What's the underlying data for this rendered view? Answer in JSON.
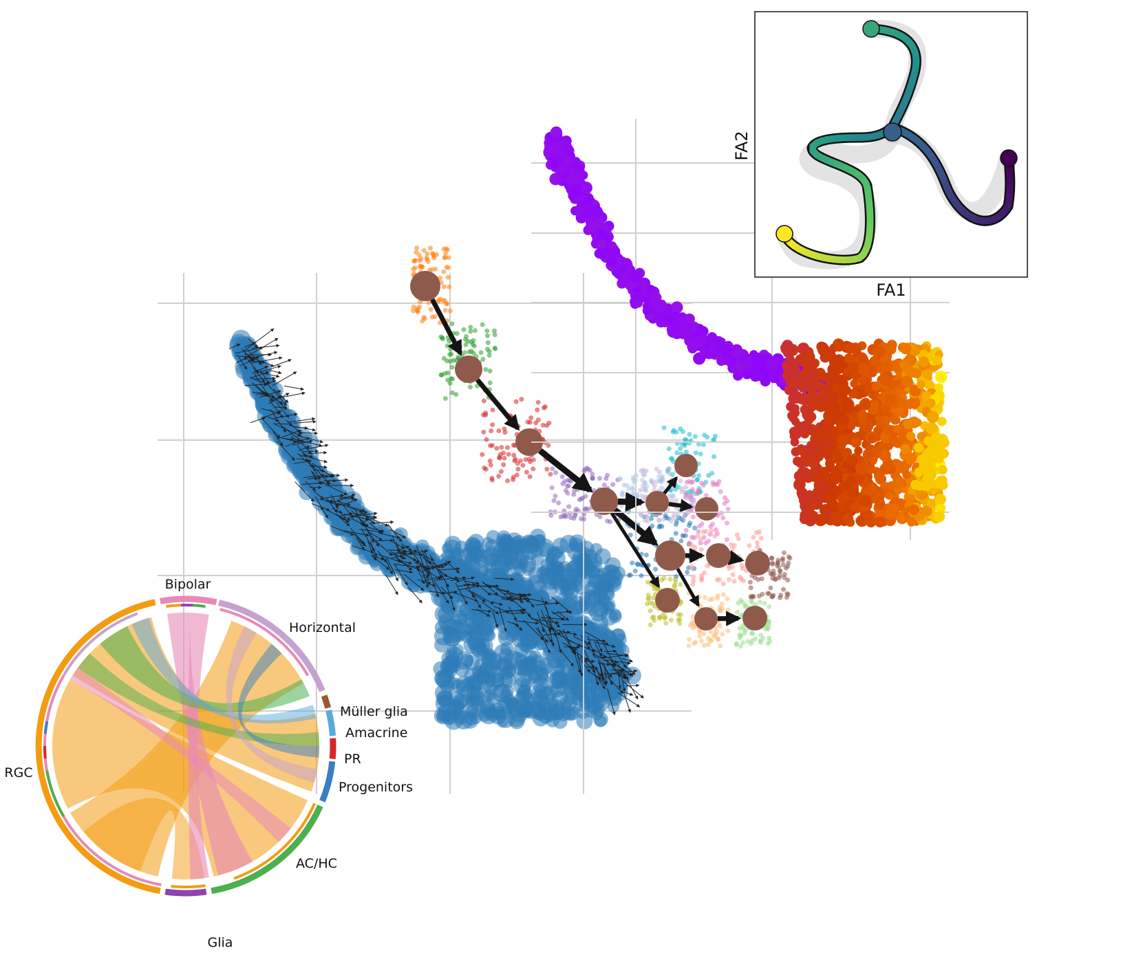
{
  "chord": {
    "labels": [
      "Bipolar",
      "Horizontal",
      "Müller glia",
      "Amacrine",
      "PR",
      "Progenitors",
      "AC/HC",
      "Glia",
      "RGC"
    ],
    "colors": {
      "Bipolar": "#e889b8",
      "Horizontal": "#c6a2d0",
      "Müller glia": "#9a5a30",
      "Amacrine": "#59a9de",
      "PR": "#d62728",
      "Progenitors": "#3a7fc0",
      "AC/HC": "#4caf50",
      "Glia": "#8e44ad",
      "RGC": "#f39c12"
    }
  },
  "trajectory_inset": {
    "xlabel": "FA1",
    "ylabel": "FA2",
    "colormap": "viridis"
  },
  "panels": {
    "velocity_color": "#2e7bb8",
    "density_colormap": "plasma",
    "paga_node_color": "#8f5a4a",
    "cluster_colors": [
      "#ff7f0e",
      "#2ca02c",
      "#d62728",
      "#9467bd",
      "#17becf",
      "#e377c2",
      "#1f77b4",
      "#ff9896",
      "#c5b0d5",
      "#8c564b",
      "#bcbd22",
      "#98df8a",
      "#ffbb78",
      "#aec7e8"
    ]
  }
}
